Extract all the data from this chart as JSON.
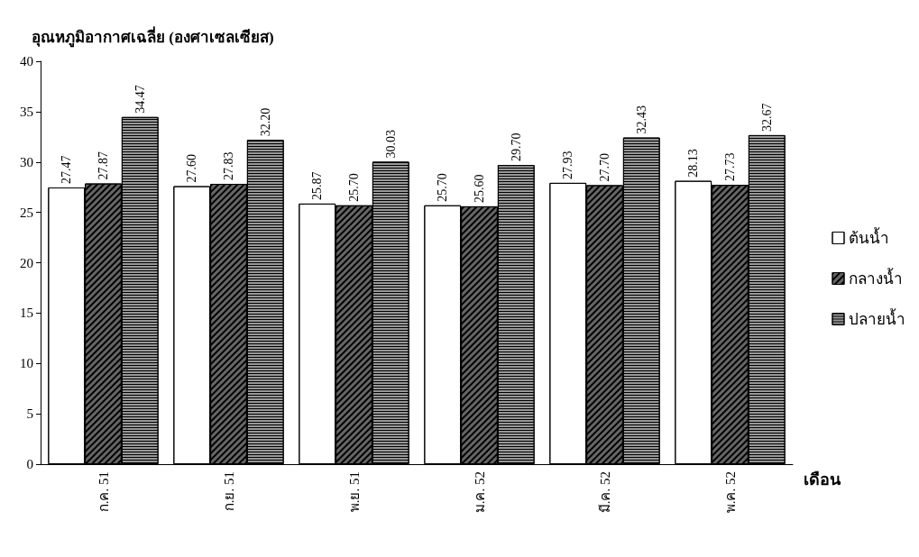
{
  "chart_data": {
    "type": "bar",
    "ylabel": "อุณหภูมิอากาศเฉลี่ย (องศาเซลเซียส)",
    "xlabel": "เดือน",
    "categories": [
      "ก.ค. 51",
      "ก.ย. 51",
      "พ.ย. 51",
      "ม.ค. 52",
      "มี.ค. 52",
      "พ.ค. 52"
    ],
    "series": [
      {
        "name": "ต้นน้ำ",
        "color": "#ffffff",
        "values": [
          27.47,
          27.6,
          25.87,
          25.7,
          27.93,
          28.13
        ],
        "value_labels": [
          "27.47",
          "27.60",
          "25.87",
          "25.70",
          "27.93",
          "28.13"
        ]
      },
      {
        "name": "กลางน้ำ",
        "color": "#666666",
        "values": [
          27.87,
          27.83,
          25.7,
          25.6,
          27.7,
          27.73
        ],
        "value_labels": [
          "27.87",
          "27.83",
          "25.70",
          "25.60",
          "27.70",
          "27.73"
        ]
      },
      {
        "name": "ปลายน้ำ",
        "color": "#999999",
        "values": [
          34.47,
          32.2,
          30.03,
          29.7,
          32.43,
          32.67
        ],
        "value_labels": [
          "34.47",
          "32.20",
          "30.03",
          "29.70",
          "32.43",
          "32.67"
        ]
      }
    ],
    "ylim": [
      0,
      40
    ],
    "yticks": [
      0,
      5,
      10,
      15,
      20,
      25,
      30,
      35,
      40
    ],
    "grid": false,
    "legend": "right"
  }
}
